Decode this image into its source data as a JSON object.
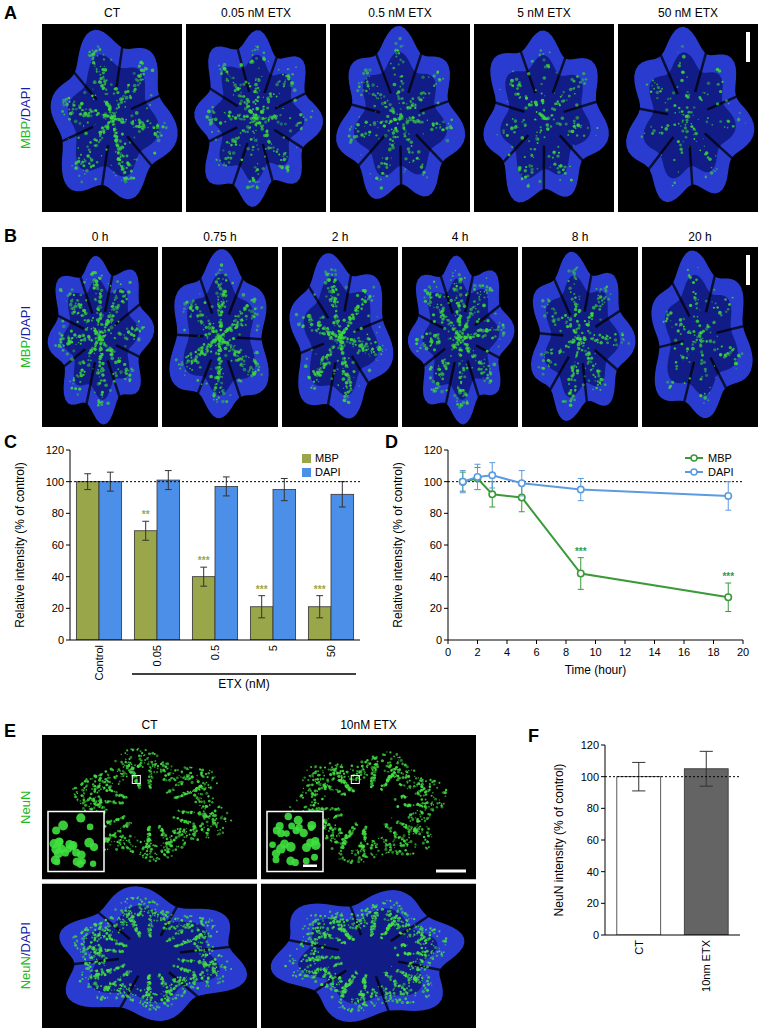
{
  "image_panels": [
    {
      "panel": "A",
      "columns": [
        "CT",
        "0.05 nM ETX",
        "0.5 nM ETX",
        "5 nM ETX",
        "50 nM ETX"
      ],
      "rows": [
        [
          {
            "text": "MBP",
            "color": "#22b822"
          },
          {
            "text": "/DAPI",
            "color": "#1a1aa8"
          }
        ]
      ]
    },
    {
      "panel": "B",
      "columns": [
        "0 h",
        "0.75 h",
        "2 h",
        "4 h",
        "8 h",
        "20 h"
      ],
      "rows": [
        [
          {
            "text": "MBP",
            "color": "#22b822"
          },
          {
            "text": "/DAPI",
            "color": "#1a1aa8"
          }
        ]
      ]
    },
    {
      "panel": "E",
      "columns": [
        "CT",
        "10nM ETX"
      ],
      "rows": [
        [
          {
            "text": "NeuN",
            "color": "#22b822"
          }
        ],
        [
          {
            "text": "NeuN",
            "color": "#22b822"
          },
          {
            "text": "/DAPI",
            "color": "#1a1aa8"
          }
        ]
      ]
    }
  ],
  "chart_data": [
    {
      "panel": "C",
      "type": "bar",
      "ylabel": "Relative intensity (% of control)",
      "xlabel": "ETX (nM)",
      "categories": [
        "Control",
        "0.05",
        "0.5",
        "5",
        "50"
      ],
      "series": [
        {
          "name": "MBP",
          "color": "#9aa64a",
          "values": [
            100,
            69,
            40,
            21,
            21
          ],
          "errors": [
            5,
            6,
            6,
            7,
            7
          ],
          "significance": [
            null,
            "**",
            "***",
            "***",
            "***"
          ]
        },
        {
          "name": "DAPI",
          "color": "#4b8fe8",
          "values": [
            100,
            101,
            97,
            95,
            92
          ],
          "errors": [
            6,
            6,
            6,
            7,
            8
          ]
        }
      ],
      "ylim": [
        0,
        120
      ],
      "yticks": [
        0,
        20,
        40,
        60,
        80,
        100,
        120
      ],
      "legend": "upper right",
      "reference_line": 100
    },
    {
      "panel": "D",
      "type": "line",
      "ylabel": "Relative intensity (% of control)",
      "xlabel": "Time (hour)",
      "x": [
        1,
        2,
        3,
        5,
        9,
        19
      ],
      "series": [
        {
          "name": "MBP",
          "color": "#3a9a3a",
          "marker": "circle",
          "values": [
            100,
            102,
            92,
            90,
            42,
            27
          ],
          "errors": [
            6,
            7,
            8,
            9,
            10,
            9
          ],
          "significance": [
            null,
            null,
            null,
            null,
            "***",
            "***"
          ]
        },
        {
          "name": "DAPI",
          "color": "#5b9be0",
          "marker": "circle",
          "values": [
            100,
            103,
            104,
            99,
            95,
            91
          ],
          "errors": [
            7,
            8,
            8,
            8,
            7,
            9
          ]
        }
      ],
      "xlim": [
        0,
        20
      ],
      "xticks": [
        0,
        2,
        4,
        6,
        8,
        10,
        12,
        14,
        16,
        18,
        20
      ],
      "ylim": [
        0,
        120
      ],
      "yticks": [
        0,
        20,
        40,
        60,
        80,
        100,
        120
      ],
      "legend": "upper right",
      "reference_line": 100
    },
    {
      "panel": "F",
      "type": "bar",
      "ylabel": "NeuN intensity (% of control)",
      "categories": [
        "CT",
        "10nm ETX"
      ],
      "values": [
        100,
        105
      ],
      "errors": [
        9,
        11
      ],
      "colors": [
        "#ffffff",
        "#646464"
      ],
      "ylim": [
        0,
        120
      ],
      "yticks": [
        0,
        20,
        40,
        60,
        80,
        100,
        120
      ],
      "reference_line": 100
    }
  ]
}
